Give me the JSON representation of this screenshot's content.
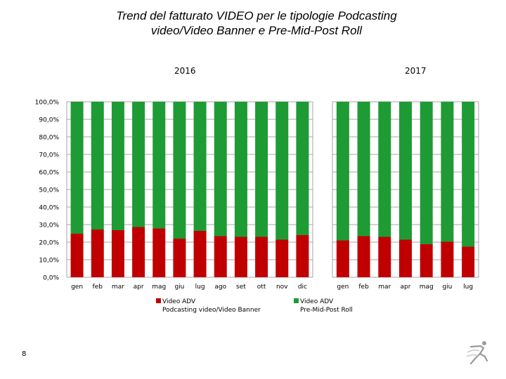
{
  "title_line1": "Trend del fatturato VIDEO per le tipologie Podcasting",
  "title_line2": "video/Video Banner e Pre-Mid-Post Roll",
  "page_number": "8",
  "colors": {
    "podcasting": "#c00000",
    "preroll": "#1e9b34",
    "grid": "#a6a6a6"
  },
  "icons": {
    "logo": "running-figure-icon"
  },
  "legend": {
    "podcasting": {
      "line1": "Video ADV",
      "line2": "Podcasting video/Video Banner"
    },
    "preroll": {
      "line1": "Video ADV",
      "line2": "Pre-Mid-Post Roll"
    }
  },
  "chart_data": {
    "type": "bar",
    "stacked": true,
    "percent": true,
    "y_ticks": [
      "0,0%",
      "10,0%",
      "20,0%",
      "30,0%",
      "40,0%",
      "50,0%",
      "60,0%",
      "70,0%",
      "80,0%",
      "90,0%",
      "100,0%"
    ],
    "ylim": [
      0,
      100
    ],
    "grid": true,
    "legend_position": "bottom",
    "panels": [
      {
        "title": "2016",
        "categories": [
          "gen",
          "feb",
          "mar",
          "apr",
          "mag",
          "giu",
          "lug",
          "ago",
          "set",
          "ott",
          "nov",
          "dic"
        ],
        "series": [
          {
            "name": "Video ADV Podcasting video/Video Banner",
            "values": [
              24.8,
              27.2,
              26.8,
              28.6,
              27.8,
              22.0,
              26.4,
              23.4,
              23.0,
              23.0,
              21.4,
              24.0
            ]
          },
          {
            "name": "Video ADV Pre-Mid-Post Roll",
            "values": [
              75.2,
              72.8,
              73.2,
              71.4,
              72.2,
              78.0,
              73.6,
              76.6,
              77.0,
              77.0,
              78.6,
              76.0
            ]
          }
        ]
      },
      {
        "title": "2017",
        "categories": [
          "gen",
          "feb",
          "mar",
          "apr",
          "mag",
          "giu",
          "lug"
        ],
        "series": [
          {
            "name": "Video ADV Podcasting video/Video Banner",
            "values": [
              21.0,
              23.4,
              23.0,
              21.4,
              18.8,
              20.2,
              17.4
            ]
          },
          {
            "name": "Video ADV Pre-Mid-Post Roll",
            "values": [
              79.0,
              76.6,
              77.0,
              78.6,
              81.2,
              79.8,
              82.6
            ]
          }
        ]
      }
    ]
  }
}
